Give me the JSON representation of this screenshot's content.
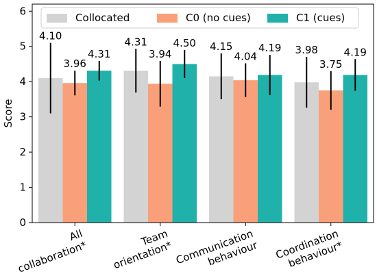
{
  "chart_data": {
    "type": "bar",
    "ylabel": "Score",
    "xlabel": "",
    "ylim": [
      0,
      6.2
    ],
    "yticks": [
      "0",
      "1",
      "2",
      "3",
      "4",
      "5",
      "6"
    ],
    "categories": [
      [
        "All",
        "collaboration*"
      ],
      [
        "Team",
        "orientation*"
      ],
      [
        "Communication",
        "behaviour"
      ],
      [
        "Coordination",
        "behaviour*"
      ]
    ],
    "series": [
      {
        "name": "Collocated",
        "color": "#d3d3d3",
        "values": [
          4.1,
          4.31,
          4.15,
          3.98
        ],
        "labels": [
          "4.10",
          "4.31",
          "4.15",
          "3.98"
        ],
        "err": [
          1.0,
          0.62,
          0.65,
          0.72
        ]
      },
      {
        "name": "C0 (no cues)",
        "color": "#f9a07a",
        "values": [
          3.96,
          3.94,
          4.04,
          3.75
        ],
        "labels": [
          "3.96",
          "3.94",
          "4.04",
          "3.75"
        ],
        "err": [
          0.35,
          0.65,
          0.48,
          0.55
        ]
      },
      {
        "name": "C1 (cues)",
        "color": "#20b2aa",
        "values": [
          4.31,
          4.5,
          4.19,
          4.19
        ],
        "labels": [
          "4.31",
          "4.50",
          "4.19",
          "4.19"
        ],
        "err": [
          0.28,
          0.4,
          0.57,
          0.45
        ]
      }
    ],
    "legend": "top, horizontal",
    "grid": false
  }
}
